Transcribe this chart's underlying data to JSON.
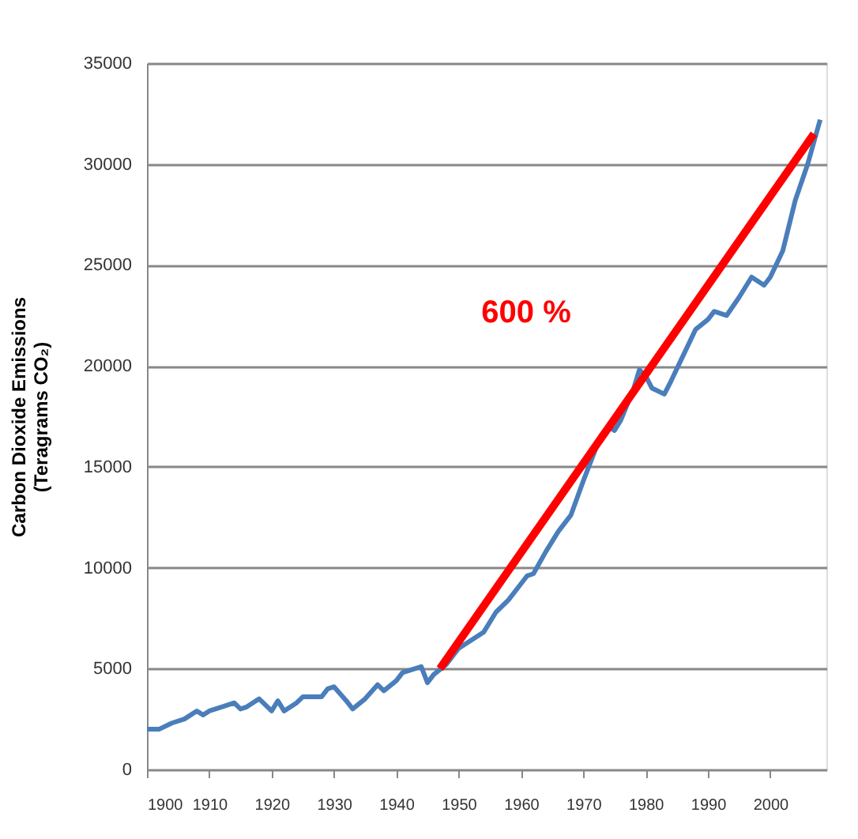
{
  "chart_data": {
    "type": "line",
    "ylabel": "Carbon Dioxide Emissions\n(Teragrams CO₂)",
    "xlim": [
      1900,
      2009
    ],
    "xticks": [
      1900,
      1910,
      1920,
      1930,
      1940,
      1950,
      1960,
      1970,
      1980,
      1990,
      2000
    ],
    "ylim": [
      0,
      35000
    ],
    "yticks": [
      0,
      5000,
      10000,
      15000,
      20000,
      25000,
      30000,
      35000
    ],
    "grid": "y",
    "series": [
      {
        "color": "#4a7ebb",
        "x": [
          1900,
          1902,
          1904,
          1906,
          1908,
          1909,
          1910,
          1912,
          1914,
          1915,
          1916,
          1918,
          1920,
          1921,
          1922,
          1924,
          1925,
          1928,
          1929,
          1930,
          1932,
          1933,
          1935,
          1937,
          1938,
          1940,
          1941,
          1943,
          1944,
          1945,
          1946,
          1948,
          1950,
          1952,
          1954,
          1956,
          1958,
          1960,
          1961,
          1962,
          1964,
          1966,
          1968,
          1970,
          1972,
          1974,
          1975,
          1976,
          1978,
          1979,
          1980,
          1981,
          1983,
          1984,
          1986,
          1988,
          1990,
          1991,
          1993,
          1995,
          1997,
          1999,
          2000,
          2002,
          2004,
          2006,
          2008
        ],
        "values": [
          2000,
          2000,
          2300,
          2500,
          2900,
          2700,
          2900,
          3100,
          3300,
          3000,
          3100,
          3500,
          2900,
          3400,
          2900,
          3300,
          3600,
          3600,
          4000,
          4100,
          3400,
          3000,
          3500,
          4200,
          3900,
          4400,
          4800,
          5000,
          5100,
          4300,
          4700,
          5200,
          6000,
          6400,
          6800,
          7800,
          8400,
          9200,
          9600,
          9700,
          10800,
          11800,
          12600,
          14300,
          15900,
          17000,
          16800,
          17300,
          18800,
          19800,
          19500,
          18900,
          18600,
          19200,
          20500,
          21800,
          22300,
          22700,
          22500,
          23400,
          24400,
          24000,
          24400,
          25700,
          28200,
          30000,
          32200
        ]
      },
      {
        "color": "#ff0000",
        "x": [
          1947,
          2007
        ],
        "values": [
          5000,
          31500
        ]
      }
    ],
    "annotations": [
      "600 %"
    ]
  }
}
